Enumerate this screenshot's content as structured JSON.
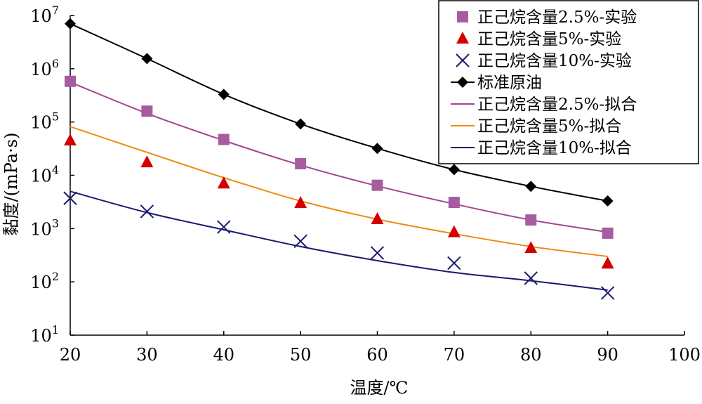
{
  "chart_data": {
    "type": "line",
    "xlabel": "温度/℃",
    "ylabel": "黏度/(mPa·s)",
    "xlim": [
      20,
      100
    ],
    "ylim": [
      10,
      10000000
    ],
    "y_scale": "log",
    "x_ticks": [
      "20",
      "30",
      "40",
      "50",
      "60",
      "70",
      "80",
      "90",
      "100"
    ],
    "y_ticks": [
      {
        "base": "10",
        "exp": "1"
      },
      {
        "base": "10",
        "exp": "2"
      },
      {
        "base": "10",
        "exp": "3"
      },
      {
        "base": "10",
        "exp": "4"
      },
      {
        "base": "10",
        "exp": "5"
      },
      {
        "base": "10",
        "exp": "6"
      },
      {
        "base": "10",
        "exp": "7"
      }
    ],
    "legend_position": "top-right",
    "series": [
      {
        "name": "正己烷含量2.5%-实验",
        "kind": "marker",
        "marker": "square",
        "color": "#a85ca0",
        "x": [
          20,
          30,
          40,
          50,
          60,
          70,
          80,
          90
        ],
        "y": [
          580000,
          160000,
          47000,
          16500,
          6500,
          3100,
          1450,
          820
        ]
      },
      {
        "name": "正己烷含量5%-实验",
        "kind": "marker",
        "marker": "triangle",
        "color": "#d40000",
        "x": [
          20,
          30,
          40,
          50,
          60,
          70,
          80,
          90
        ],
        "y": [
          45000,
          17500,
          7000,
          3000,
          1500,
          850,
          430,
          220
        ]
      },
      {
        "name": "正己烷含量10%-实验",
        "kind": "marker",
        "marker": "x",
        "color": "#1a1a6e",
        "x": [
          20,
          30,
          40,
          50,
          60,
          70,
          80,
          90
        ],
        "y": [
          3700,
          2100,
          1070,
          580,
          350,
          225,
          117,
          62
        ]
      },
      {
        "name": "标准原油",
        "kind": "line-marker",
        "marker": "diamond",
        "color": "#000000",
        "x": [
          20,
          30,
          40,
          50,
          60,
          70,
          80,
          90
        ],
        "y": [
          7000000,
          1550000,
          330000,
          92000,
          32000,
          12800,
          6200,
          3300
        ]
      },
      {
        "name": "正己烷含量2.5%-拟合",
        "kind": "line",
        "color": "#a0468c",
        "x": [
          20,
          30,
          40,
          50,
          60,
          70,
          80,
          90
        ],
        "y": [
          560000,
          145000,
          45000,
          15500,
          6300,
          2900,
          1450,
          860
        ]
      },
      {
        "name": "正己烷含量5%-拟合",
        "kind": "line",
        "color": "#f08a10",
        "x": [
          20,
          30,
          40,
          50,
          60,
          70,
          80,
          90
        ],
        "y": [
          82000,
          27000,
          9000,
          3300,
          1500,
          800,
          460,
          300
        ]
      },
      {
        "name": "正己烷含量10%-拟合",
        "kind": "line",
        "color": "#1a1a6e",
        "x": [
          20,
          30,
          40,
          50,
          60,
          70,
          80,
          90
        ],
        "y": [
          5000,
          2000,
          950,
          460,
          250,
          150,
          105,
          70
        ]
      }
    ]
  }
}
